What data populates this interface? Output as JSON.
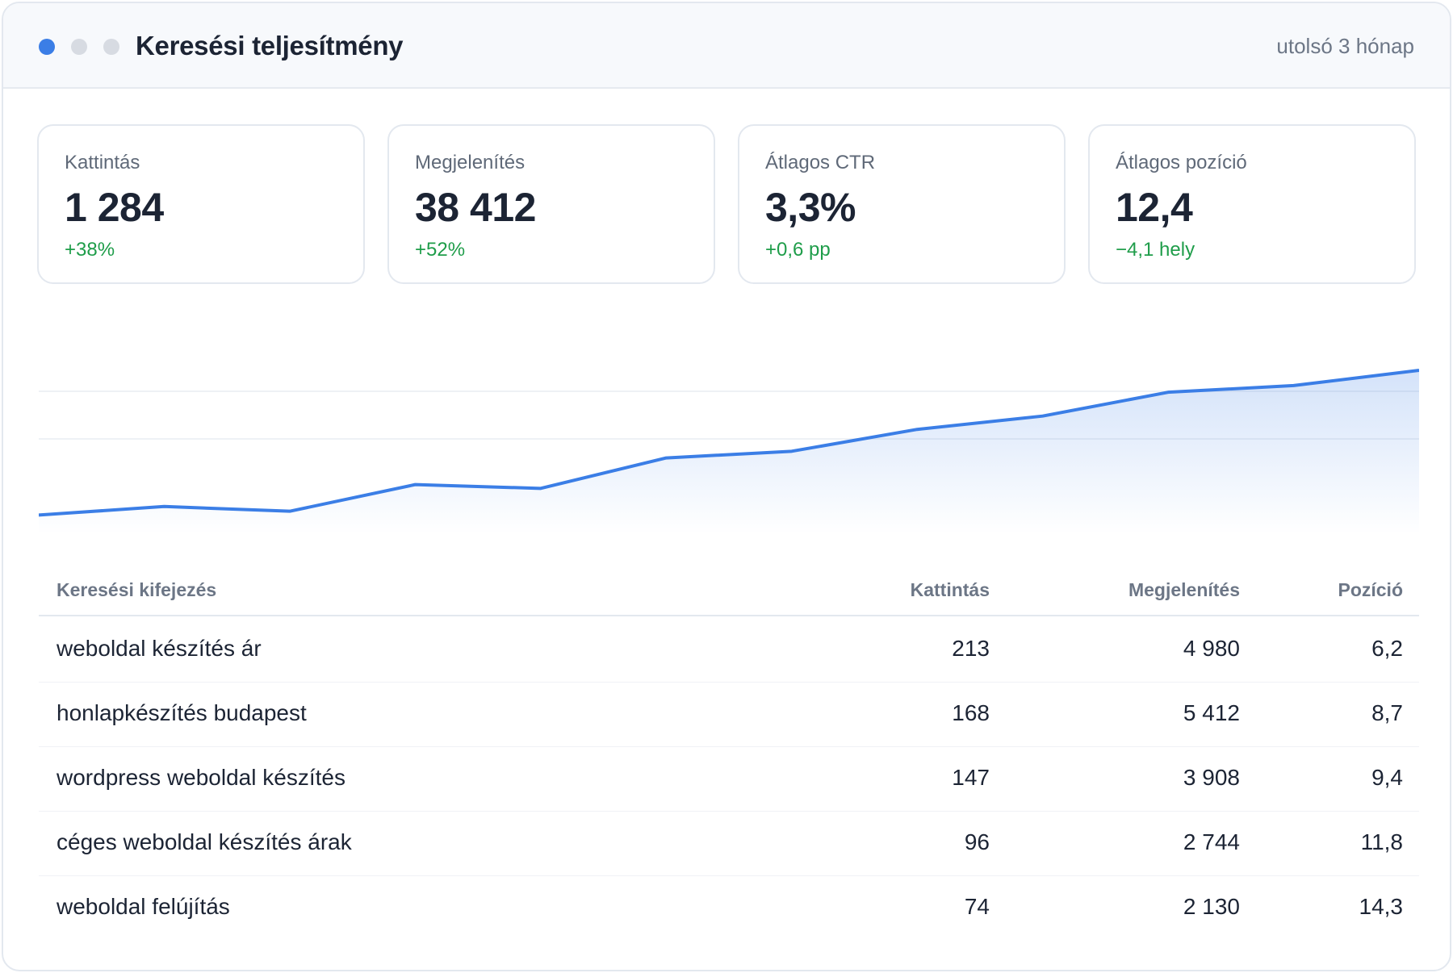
{
  "header": {
    "title": "Keresési teljesítmény",
    "period": "utolsó 3 hónap"
  },
  "kpis": [
    {
      "label": "Kattintás",
      "value": "1 284",
      "change": "+38%"
    },
    {
      "label": "Megjelenítés",
      "value": "38 412",
      "change": "+52%"
    },
    {
      "label": "Átlagos CTR",
      "value": "3,3%",
      "change": "+0,6 pp"
    },
    {
      "label": "Átlagos pozíció",
      "value": "12,4",
      "change": "−4,1 hely"
    }
  ],
  "colors": {
    "accent": "#3b7ee6",
    "positive": "#1f9d4a",
    "text": "#1c2434",
    "muted": "#6c7686"
  },
  "chart_data": {
    "type": "area",
    "x": [
      1,
      2,
      3,
      4,
      5,
      6,
      7,
      8,
      9,
      10,
      11,
      12
    ],
    "series": [
      {
        "values": [
          20,
          29,
          24,
          52,
          48,
          80,
          87,
          110,
          124,
          149,
          156,
          172
        ]
      }
    ],
    "ylim": [
      0,
      200
    ],
    "grid": true,
    "legend": "none"
  },
  "table": {
    "columns": [
      "Keresési kifejezés",
      "Kattintás",
      "Megjelenítés",
      "Pozíció"
    ],
    "rows": [
      [
        "weboldal készítés ár",
        "213",
        "4 980",
        "6,2"
      ],
      [
        "honlapkészítés budapest",
        "168",
        "5 412",
        "8,7"
      ],
      [
        "wordpress weboldal készítés",
        "147",
        "3 908",
        "9,4"
      ],
      [
        "céges weboldal készítés árak",
        "96",
        "2 744",
        "11,8"
      ],
      [
        "weboldal felújítás",
        "74",
        "2 130",
        "14,3"
      ]
    ]
  }
}
